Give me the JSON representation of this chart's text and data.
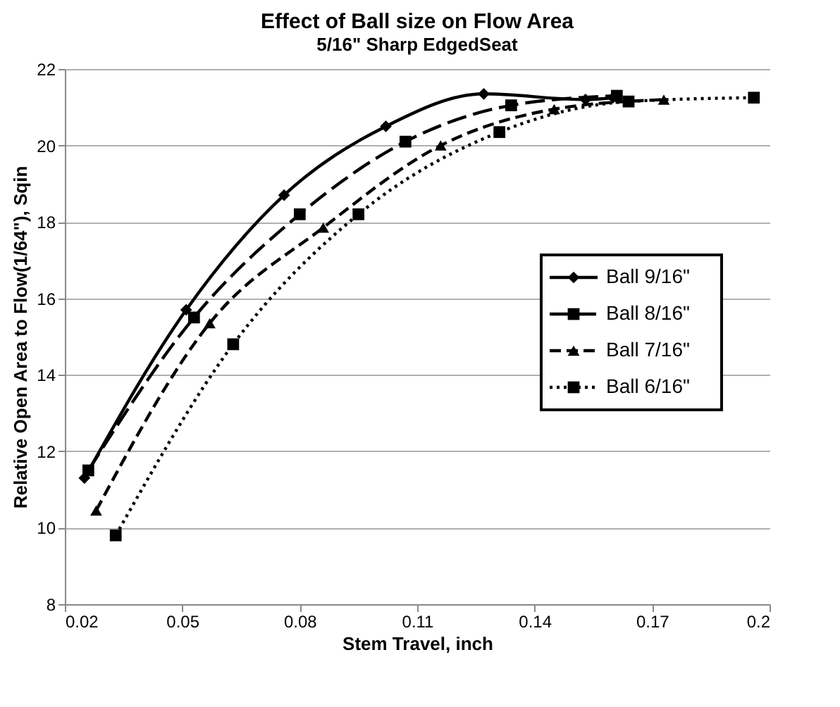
{
  "chart_data": {
    "type": "line",
    "title": "Effect of Ball size on Flow Area",
    "subtitle": "5/16\" Sharp EdgedSeat",
    "xlabel": "Stem Travel, inch",
    "ylabel": "Relative Open Area to Flow(1/64\"), Sqin",
    "xlim": [
      0.02,
      0.2
    ],
    "xticks": [
      0.02,
      0.05,
      0.08,
      0.11,
      0.14,
      0.17,
      0.2
    ],
    "ylim": [
      8,
      22
    ],
    "yticks": [
      8,
      10,
      12,
      14,
      16,
      18,
      20,
      22
    ],
    "grid": "y",
    "legend": "right",
    "series": [
      {
        "name": "Ball 9/16\"",
        "color": "#000000",
        "marker": "diamond",
        "line_style": "solid",
        "x": [
          0.025,
          0.051,
          0.076,
          0.102,
          0.127,
          0.153,
          0.16
        ],
        "values": [
          11.3,
          15.7,
          18.7,
          20.5,
          21.35,
          21.2,
          21.25
        ]
      },
      {
        "name": "Ball 8/16\"",
        "color": "#000000",
        "marker": "square",
        "line_style": "dashed",
        "x": [
          0.026,
          0.053,
          0.08,
          0.107,
          0.134,
          0.161
        ],
        "values": [
          11.5,
          15.5,
          18.2,
          20.1,
          21.05,
          21.3
        ]
      },
      {
        "name": "Ball 7/16\"",
        "color": "#000000",
        "marker": "triangle",
        "line_style": "dashed",
        "x": [
          0.028,
          0.057,
          0.086,
          0.116,
          0.145,
          0.173
        ],
        "values": [
          10.45,
          15.35,
          17.85,
          20.0,
          20.95,
          21.2
        ]
      },
      {
        "name": "Ball 6/16\"",
        "color": "#000000",
        "marker": "square",
        "line_style": "dotted",
        "x": [
          0.033,
          0.063,
          0.095,
          0.131,
          0.164,
          0.196
        ],
        "values": [
          9.8,
          14.8,
          18.2,
          20.35,
          21.15,
          21.25
        ]
      }
    ]
  }
}
